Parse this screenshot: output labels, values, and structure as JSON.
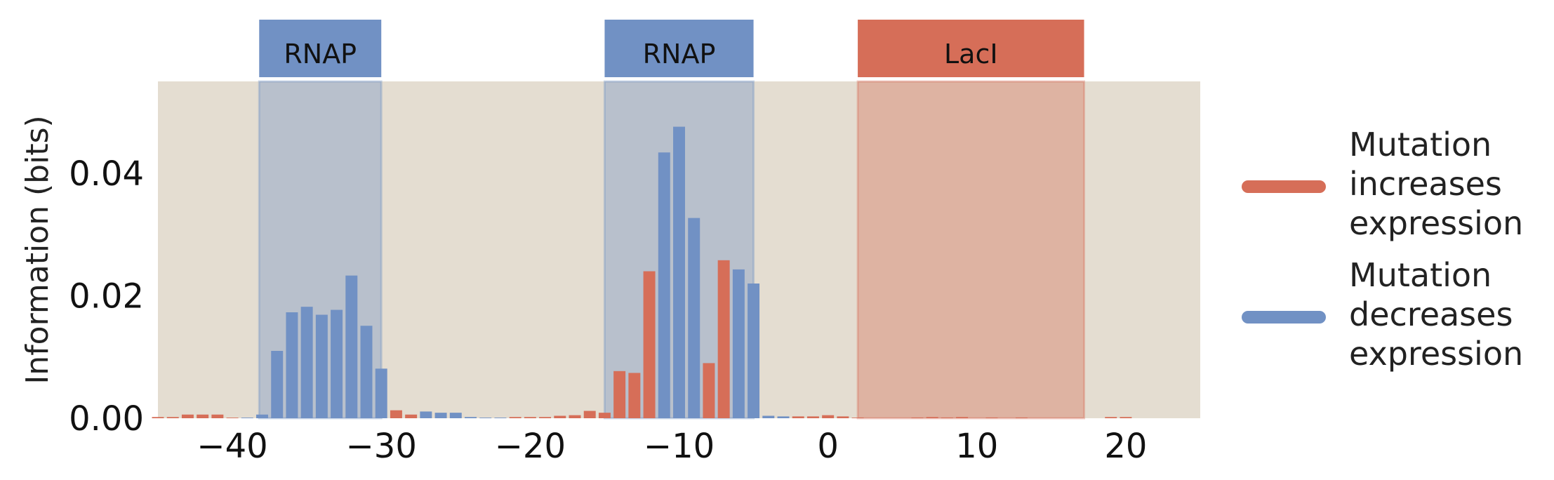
{
  "chart_data": {
    "type": "bar",
    "title": "",
    "xlabel": "",
    "ylabel": "Information (bits)",
    "xlim": [
      -45,
      25
    ],
    "ylim": [
      0,
      0.055
    ],
    "x_ticks": [
      -40,
      -30,
      -20,
      -10,
      0,
      10,
      20
    ],
    "x_tick_labels": [
      "−40",
      "−30",
      "−20",
      "−10",
      "0",
      "10",
      "20"
    ],
    "y_ticks": [
      0.0,
      0.02,
      0.04
    ],
    "y_tick_labels": [
      "0.00",
      "0.02",
      "0.04"
    ],
    "grid": false,
    "background_color": "#e4ddd1",
    "colors": {
      "increases": "#d66e58",
      "decreases": "#7191c4"
    },
    "regions": [
      {
        "label": "RNAP",
        "start": -38.2,
        "end": -30.0,
        "color": "#7191c4"
      },
      {
        "label": "RNAP",
        "start": -15.0,
        "end": -5.0,
        "color": "#7191c4"
      },
      {
        "label": "LacI",
        "start": 2.0,
        "end": 17.2,
        "color": "#d66e58"
      }
    ],
    "bars": [
      {
        "x": -45,
        "value": 0.0002,
        "effect": "increases"
      },
      {
        "x": -44,
        "value": 0.0002,
        "effect": "increases"
      },
      {
        "x": -43,
        "value": 0.0006,
        "effect": "increases"
      },
      {
        "x": -42,
        "value": 0.0006,
        "effect": "increases"
      },
      {
        "x": -41,
        "value": 0.0006,
        "effect": "increases"
      },
      {
        "x": -40,
        "value": 0.0001,
        "effect": "increases"
      },
      {
        "x": -39,
        "value": 0.0001,
        "effect": "decreases"
      },
      {
        "x": -38,
        "value": 0.0006,
        "effect": "decreases"
      },
      {
        "x": -37,
        "value": 0.011,
        "effect": "decreases"
      },
      {
        "x": -36,
        "value": 0.0173,
        "effect": "decreases"
      },
      {
        "x": -35,
        "value": 0.0182,
        "effect": "decreases"
      },
      {
        "x": -34,
        "value": 0.0169,
        "effect": "decreases"
      },
      {
        "x": -33,
        "value": 0.0177,
        "effect": "decreases"
      },
      {
        "x": -32,
        "value": 0.0233,
        "effect": "decreases"
      },
      {
        "x": -31,
        "value": 0.0151,
        "effect": "decreases"
      },
      {
        "x": -30,
        "value": 0.0081,
        "effect": "decreases"
      },
      {
        "x": -29,
        "value": 0.0013,
        "effect": "increases"
      },
      {
        "x": -28,
        "value": 0.0006,
        "effect": "increases"
      },
      {
        "x": -27,
        "value": 0.0011,
        "effect": "decreases"
      },
      {
        "x": -26,
        "value": 0.0009,
        "effect": "decreases"
      },
      {
        "x": -25,
        "value": 0.0009,
        "effect": "decreases"
      },
      {
        "x": -24,
        "value": 0.0002,
        "effect": "decreases"
      },
      {
        "x": -23,
        "value": 0.0001,
        "effect": "decreases"
      },
      {
        "x": -22,
        "value": 0.0001,
        "effect": "decreases"
      },
      {
        "x": -21,
        "value": 0.0002,
        "effect": "increases"
      },
      {
        "x": -20,
        "value": 0.0002,
        "effect": "increases"
      },
      {
        "x": -19,
        "value": 0.0002,
        "effect": "increases"
      },
      {
        "x": -18,
        "value": 0.0004,
        "effect": "increases"
      },
      {
        "x": -17,
        "value": 0.0005,
        "effect": "increases"
      },
      {
        "x": -16,
        "value": 0.0012,
        "effect": "increases"
      },
      {
        "x": -15,
        "value": 0.0009,
        "effect": "increases"
      },
      {
        "x": -14,
        "value": 0.0077,
        "effect": "increases"
      },
      {
        "x": -13,
        "value": 0.0074,
        "effect": "increases"
      },
      {
        "x": -12,
        "value": 0.024,
        "effect": "increases"
      },
      {
        "x": -11,
        "value": 0.0434,
        "effect": "decreases"
      },
      {
        "x": -10,
        "value": 0.0476,
        "effect": "decreases"
      },
      {
        "x": -9,
        "value": 0.0327,
        "effect": "decreases"
      },
      {
        "x": -8,
        "value": 0.009,
        "effect": "increases"
      },
      {
        "x": -7,
        "value": 0.0258,
        "effect": "increases"
      },
      {
        "x": -6,
        "value": 0.0243,
        "effect": "decreases"
      },
      {
        "x": -5,
        "value": 0.022,
        "effect": "decreases"
      },
      {
        "x": -4,
        "value": 0.0004,
        "effect": "decreases"
      },
      {
        "x": -3,
        "value": 0.0003,
        "effect": "decreases"
      },
      {
        "x": -2,
        "value": 0.0003,
        "effect": "increases"
      },
      {
        "x": -1,
        "value": 0.0003,
        "effect": "increases"
      },
      {
        "x": 0,
        "value": 0.0005,
        "effect": "increases"
      },
      {
        "x": 1,
        "value": 0.0003,
        "effect": "increases"
      },
      {
        "x": 2,
        "value": 0.0001,
        "effect": "increases"
      },
      {
        "x": 6,
        "value": 0.0001,
        "effect": "increases"
      },
      {
        "x": 7,
        "value": 0.0002,
        "effect": "increases"
      },
      {
        "x": 8,
        "value": 0.0001,
        "effect": "increases"
      },
      {
        "x": 9,
        "value": 0.0002,
        "effect": "increases"
      },
      {
        "x": 11,
        "value": 0.0001,
        "effect": "increases"
      },
      {
        "x": 13,
        "value": 0.0001,
        "effect": "increases"
      },
      {
        "x": 19,
        "value": 0.0002,
        "effect": "increases"
      },
      {
        "x": 20,
        "value": 0.0002,
        "effect": "increases"
      }
    ],
    "legend": {
      "placement": "right",
      "entries": [
        {
          "effect": "increases",
          "lines": [
            "Mutation",
            "increases",
            "expression"
          ]
        },
        {
          "effect": "decreases",
          "lines": [
            "Mutation",
            "decreases",
            "expression"
          ]
        }
      ]
    }
  }
}
